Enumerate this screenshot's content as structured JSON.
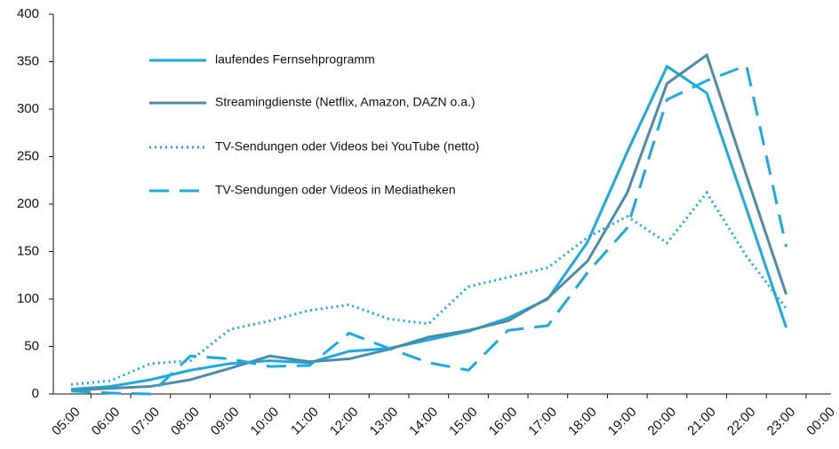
{
  "chart_data": {
    "type": "line",
    "categories": [
      "05:00",
      "06:00",
      "07:00",
      "08:00",
      "09:00",
      "10:00",
      "11:00",
      "12:00",
      "13:00",
      "14:00",
      "15:00",
      "16:00",
      "17:00",
      "18:00",
      "19:00",
      "20:00",
      "21:00",
      "22:00",
      "23:00",
      "00:00"
    ],
    "series": [
      {
        "name": "laufendes Fernsehprogramm",
        "color": "#1ba9e0",
        "dash": "solid",
        "values": [
          5,
          8,
          15,
          25,
          32,
          35,
          33,
          45,
          48,
          57,
          66,
          80,
          100,
          160,
          255,
          345,
          317,
          195,
          70,
          null
        ]
      },
      {
        "name": "Streamingdienste (Netflix, Amazon, DAZN o.a.)",
        "color": "#4d8ba8",
        "dash": "solid",
        "values": [
          4,
          6,
          8,
          15,
          27,
          40,
          34,
          37,
          47,
          60,
          67,
          77,
          101,
          140,
          212,
          327,
          357,
          230,
          105,
          null
        ]
      },
      {
        "name": "TV-Sendungen oder Videos bei YouTube (netto)",
        "color": "#1ba9e0",
        "dash": "dotted",
        "values": [
          10,
          14,
          32,
          35,
          68,
          77,
          88,
          94,
          79,
          74,
          113,
          123,
          133,
          165,
          187,
          159,
          212,
          145,
          90,
          null
        ]
      },
      {
        "name": "TV-Sendungen oder Videos in Mediatheken",
        "color": "#1ba9e0",
        "dash": "dashed",
        "values": [
          3,
          1,
          0,
          40,
          37,
          29,
          30,
          64,
          48,
          33,
          25,
          67,
          72,
          128,
          175,
          310,
          330,
          346,
          155,
          null
        ]
      }
    ],
    "ylim": [
      0,
      400
    ],
    "yticks": [
      0,
      50,
      100,
      150,
      200,
      250,
      300,
      350,
      400
    ],
    "grid": false
  }
}
